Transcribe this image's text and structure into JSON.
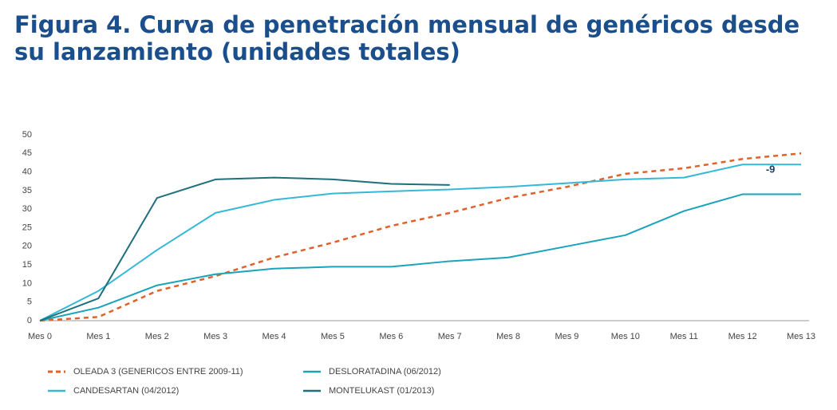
{
  "chart_data": {
    "type": "line",
    "title": "Figura 4. Curva de penetración mensual de genéricos desde su lanzamiento (unidades totales)",
    "categories": [
      "Mes 0",
      "Mes 1",
      "Mes 2",
      "Mes 3",
      "Mes 4",
      "Mes 5",
      "Mes 6",
      "Mes 7",
      "Mes 8",
      "Mes 9",
      "Mes 10",
      "Mes 11",
      "Mes 12",
      "Mes 13"
    ],
    "series": [
      {
        "name": "OLEADA 3 (GENERICOS ENTRE 2009-11)",
        "color": "#e0622a",
        "style": "dashed",
        "values": [
          0,
          1,
          8,
          12,
          17,
          21,
          25.5,
          29,
          33,
          36,
          39.5,
          41,
          43.5,
          45
        ]
      },
      {
        "name": "DESLORATADINA (06/2012)",
        "color": "#1aa3bb",
        "style": "solid",
        "values": [
          0,
          3.5,
          9.5,
          12.5,
          14,
          14.5,
          14.5,
          16,
          17,
          20,
          23,
          29.5,
          34,
          34
        ]
      },
      {
        "name": "CANDESARTAN (04/2012)",
        "color": "#35b8d8",
        "style": "solid",
        "values": [
          0,
          8,
          19,
          29,
          32.5,
          34.2,
          34.8,
          35.3,
          36,
          37,
          38,
          38.5,
          42,
          42
        ]
      },
      {
        "name": "MONTELUKAST (01/2013)",
        "color": "#1f6f7c",
        "style": "solid",
        "values": [
          0,
          6,
          33,
          38,
          38.5,
          38,
          36.8,
          36.5,
          null,
          null,
          null,
          null,
          null,
          null
        ]
      }
    ],
    "annotations": [
      "-9"
    ],
    "ylim": [
      0,
      50
    ],
    "yticks": [
      0,
      5,
      10,
      15,
      20,
      25,
      30,
      35,
      40,
      45,
      50
    ],
    "grid": false
  }
}
